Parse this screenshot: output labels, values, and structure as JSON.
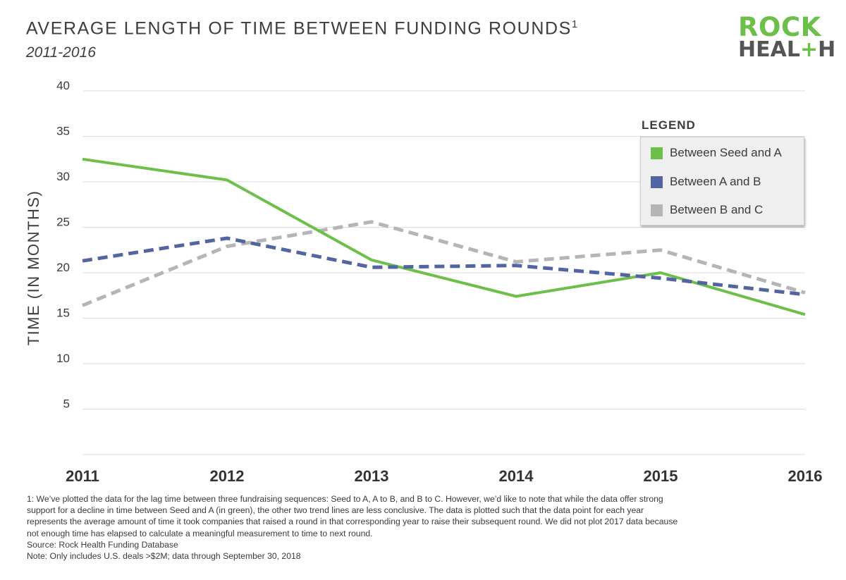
{
  "title": "AVERAGE LENGTH OF TIME BETWEEN FUNDING ROUNDS",
  "title_superscript": "1",
  "subtitle": "2011-2016",
  "logo": {
    "line1": "ROCK",
    "line2_prefix": "HEAL",
    "line2_plus": "+",
    "line2_suffix": "H",
    "green": "#6cc04a",
    "gray": "#555555"
  },
  "legend": {
    "title": "LEGEND",
    "items": [
      {
        "label": "Between Seed and A",
        "color": "#6cc04a"
      },
      {
        "label": "Between A and B",
        "color": "#5265a1"
      },
      {
        "label": "Between B and C",
        "color": "#b5b5b5"
      }
    ]
  },
  "chart_data": {
    "type": "line",
    "title": "AVERAGE LENGTH OF TIME BETWEEN FUNDING ROUNDS",
    "subtitle": "2011-2016",
    "xlabel": "",
    "ylabel": "TIME (IN MONTHS)",
    "x": [
      "2011",
      "2012",
      "2013",
      "2014",
      "2015",
      "2016"
    ],
    "yticks": [
      5,
      10,
      15,
      20,
      25,
      30,
      35,
      40
    ],
    "ylim": [
      0,
      40
    ],
    "grid": true,
    "legend_position": "top-right",
    "series": [
      {
        "name": "Between Seed and A",
        "color": "#6cc04a",
        "style": "solid",
        "values": [
          32.5,
          30.2,
          21.4,
          17.4,
          20.0,
          15.4
        ]
      },
      {
        "name": "Between A and B",
        "color": "#5265a1",
        "style": "dashed",
        "values": [
          21.3,
          23.8,
          20.6,
          20.8,
          19.4,
          17.6
        ]
      },
      {
        "name": "Between B and C",
        "color": "#b5b5b5",
        "style": "dashed",
        "values": [
          16.4,
          22.9,
          25.6,
          21.2,
          22.5,
          17.8
        ]
      }
    ]
  },
  "footnote": {
    "note": "1: We’ve plotted the data for the lag time between three fundraising sequences: Seed to A, A to B, and B to C. However, we’d like to note that while the data offer strong support for a decline in time between Seed and A (in green), the other two trend lines are less conclusive. The data is plotted such that the data point for each year represents the average amount of time it took companies that raised a round in that corresponding year to raise their subsequent round. We did not plot 2017 data because not enough time has elapsed to calculate a meaningful measurement to time to next round.",
    "source": "Source: Rock Health Funding Database",
    "scope": "Note: Only includes U.S. deals >$2M; data through September 30, 2018"
  }
}
